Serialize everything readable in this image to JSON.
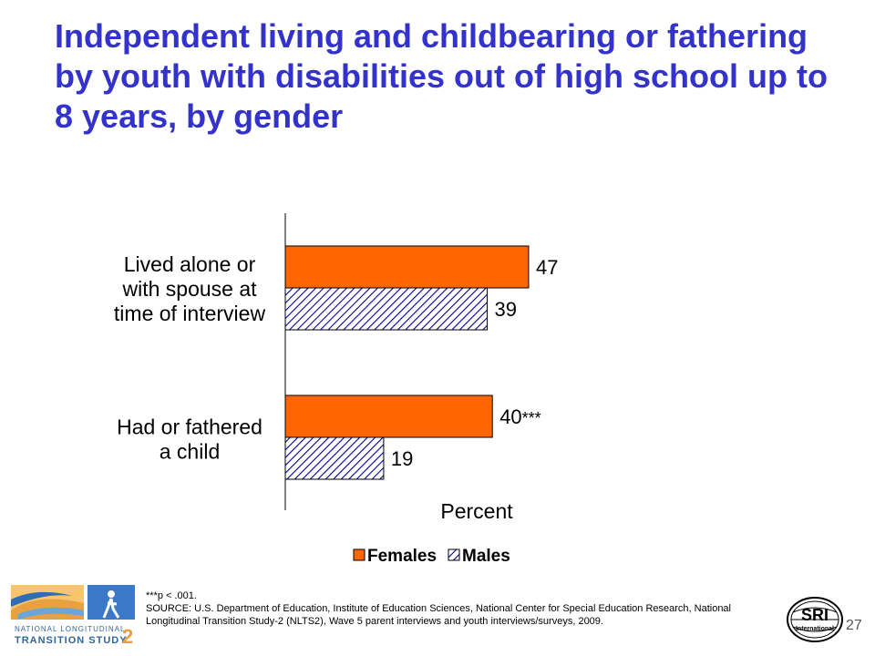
{
  "slide": {
    "title": "Independent living and childbearing or fathering by youth with disabilities out of high school up to 8 years, by gender",
    "page_number": "27",
    "footnote_sig": "***p < .001.",
    "footnote_source": "SOURCE: U.S. Department of Education, Institute of Education Sciences, National Center for Special Education Research, National Longitudinal Transition Study-2 (NLTS2), Wave 5 parent interviews and youth interviews/surveys, 2009.",
    "logo_left_text_1": "NATIONAL LONGITUDINAL",
    "logo_left_text_2": "TRANSITION STUDY",
    "logo_left_number": "2",
    "logo_right_text": "SRI",
    "logo_right_subtext": "International"
  },
  "chart_data": {
    "type": "bar",
    "orientation": "horizontal",
    "categories": [
      [
        "Lived alone or",
        "with spouse at",
        "time of interview"
      ],
      [
        "Had or fathered",
        "a child"
      ]
    ],
    "series": [
      {
        "name": "Females",
        "values": [
          47,
          40
        ],
        "color": "#ff6600",
        "pattern": "solid"
      },
      {
        "name": "Males",
        "values": [
          39,
          19
        ],
        "color": "#000099",
        "pattern": "diagonal-hatch"
      }
    ],
    "significance": [
      [
        "",
        ""
      ],
      [
        "***",
        ""
      ]
    ],
    "xlabel": "Percent",
    "xlim": [
      0,
      100
    ],
    "grid": false,
    "legend_position": "bottom"
  }
}
